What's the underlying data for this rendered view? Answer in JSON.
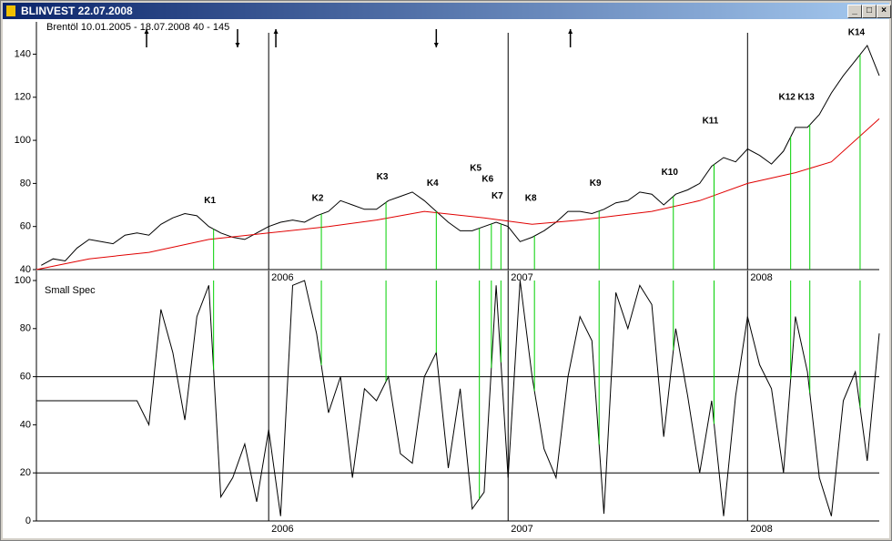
{
  "window": {
    "title": "BLINVEST  22.07.2008"
  },
  "chart_data": [
    {
      "type": "line",
      "title": "Brentöl  10.01.2005 - 18.07.2008  40 - 145",
      "xlim": [
        2005.03,
        2008.55
      ],
      "xticks": [
        2006,
        2007,
        2008
      ],
      "ylim": [
        40,
        155
      ],
      "yticks": [
        40,
        60,
        80,
        100,
        120,
        140
      ],
      "series": [
        {
          "color": "#000000",
          "x": [
            2005.05,
            2005.1,
            2005.15,
            2005.2,
            2005.25,
            2005.3,
            2005.35,
            2005.4,
            2005.45,
            2005.5,
            2005.55,
            2005.6,
            2005.65,
            2005.7,
            2005.75,
            2005.8,
            2005.85,
            2005.9,
            2005.95,
            2006,
            2006.05,
            2006.1,
            2006.15,
            2006.2,
            2006.25,
            2006.3,
            2006.35,
            2006.4,
            2006.45,
            2006.5,
            2006.55,
            2006.6,
            2006.65,
            2006.7,
            2006.75,
            2006.8,
            2006.85,
            2006.9,
            2006.95,
            2007,
            2007.05,
            2007.1,
            2007.15,
            2007.2,
            2007.25,
            2007.3,
            2007.35,
            2007.4,
            2007.45,
            2007.5,
            2007.55,
            2007.6,
            2007.65,
            2007.7,
            2007.75,
            2007.8,
            2007.85,
            2007.9,
            2007.95,
            2008,
            2008.05,
            2008.1,
            2008.15,
            2008.2,
            2008.25,
            2008.3,
            2008.35,
            2008.4,
            2008.45,
            2008.5,
            2008.55
          ],
          "values": [
            42,
            45,
            44,
            50,
            54,
            53,
            52,
            56,
            57,
            56,
            61,
            64,
            66,
            65,
            60,
            57,
            55,
            54,
            57,
            60,
            62,
            63,
            62,
            65,
            67,
            72,
            70,
            68,
            68,
            72,
            74,
            76,
            72,
            67,
            62,
            58,
            58,
            60,
            62,
            60,
            53,
            55,
            58,
            62,
            67,
            67,
            66,
            68,
            71,
            72,
            76,
            75,
            70,
            75,
            77,
            80,
            88,
            92,
            90,
            96,
            93,
            89,
            95,
            106,
            106,
            112,
            122,
            130,
            137,
            144,
            130
          ]
        },
        {
          "color": "#e00000",
          "x": [
            2005.03,
            2005.25,
            2005.5,
            2005.75,
            2006,
            2006.25,
            2006.45,
            2006.65,
            2006.9,
            2007.1,
            2007.3,
            2007.6,
            2007.8,
            2008,
            2008.2,
            2008.35,
            2008.55
          ],
          "values": [
            40,
            45,
            48,
            54,
            57,
            60,
            63,
            67,
            64,
            61,
            63,
            67,
            72,
            80,
            85,
            90,
            110
          ]
        }
      ],
      "annotations": [
        {
          "text": "K1",
          "x": 2005.77,
          "y": 72
        },
        {
          "text": "K2",
          "x": 2006.22,
          "y": 73
        },
        {
          "text": "K3",
          "x": 2006.49,
          "y": 83
        },
        {
          "text": "K4",
          "x": 2006.7,
          "y": 80
        },
        {
          "text": "K5",
          "x": 2006.88,
          "y": 87
        },
        {
          "text": "K6",
          "x": 2006.93,
          "y": 82
        },
        {
          "text": "K7",
          "x": 2006.97,
          "y": 74
        },
        {
          "text": "K8",
          "x": 2007.11,
          "y": 73
        },
        {
          "text": "K9",
          "x": 2007.38,
          "y": 80
        },
        {
          "text": "K10",
          "x": 2007.69,
          "y": 85
        },
        {
          "text": "K11",
          "x": 2007.86,
          "y": 109
        },
        {
          "text": "K12",
          "x": 2008.18,
          "y": 120
        },
        {
          "text": "K13",
          "x": 2008.26,
          "y": 120
        },
        {
          "text": "K14",
          "x": 2008.47,
          "y": 150
        }
      ],
      "annotation_color": "#00d000",
      "arrows": [
        {
          "x": 2005.49,
          "direction": "up"
        },
        {
          "x": 2005.87,
          "direction": "down"
        },
        {
          "x": 2006.03,
          "direction": "up"
        },
        {
          "x": 2006.7,
          "direction": "down"
        },
        {
          "x": 2007.26,
          "direction": "up"
        }
      ]
    },
    {
      "type": "line",
      "title": "Small Spec",
      "xlim": [
        2005.03,
        2008.55
      ],
      "xticks": [
        2006,
        2007,
        2008
      ],
      "ylim": [
        0,
        100
      ],
      "yticks": [
        0,
        20,
        40,
        60,
        80,
        100
      ],
      "reference_lines": [
        20,
        60
      ],
      "series": [
        {
          "color": "#000000",
          "x": [
            2005.03,
            2005.05,
            2005.1,
            2005.15,
            2005.2,
            2005.25,
            2005.3,
            2005.35,
            2005.4,
            2005.45,
            2005.5,
            2005.55,
            2005.6,
            2005.65,
            2005.7,
            2005.75,
            2005.8,
            2005.85,
            2005.9,
            2005.95,
            2006,
            2006.05,
            2006.1,
            2006.15,
            2006.2,
            2006.25,
            2006.3,
            2006.35,
            2006.4,
            2006.45,
            2006.5,
            2006.55,
            2006.6,
            2006.65,
            2006.7,
            2006.75,
            2006.8,
            2006.85,
            2006.9,
            2006.95,
            2007,
            2007.05,
            2007.1,
            2007.15,
            2007.2,
            2007.25,
            2007.3,
            2007.35,
            2007.4,
            2007.45,
            2007.5,
            2007.55,
            2007.6,
            2007.65,
            2007.7,
            2007.75,
            2007.8,
            2007.85,
            2007.9,
            2007.95,
            2008,
            2008.05,
            2008.1,
            2008.15,
            2008.2,
            2008.25,
            2008.3,
            2008.35,
            2008.4,
            2008.45,
            2008.5,
            2008.55
          ],
          "values": [
            50,
            50,
            50,
            50,
            50,
            50,
            50,
            50,
            50,
            50,
            40,
            88,
            70,
            42,
            85,
            98,
            10,
            18,
            32,
            8,
            38,
            2,
            98,
            100,
            78,
            45,
            60,
            18,
            55,
            50,
            60,
            28,
            24,
            60,
            70,
            22,
            55,
            5,
            12,
            98,
            18,
            100,
            60,
            30,
            18,
            60,
            85,
            75,
            3,
            95,
            80,
            98,
            90,
            35,
            80,
            52,
            20,
            50,
            2,
            52,
            85,
            65,
            55,
            20,
            85,
            62,
            18,
            2,
            50,
            62,
            25,
            78
          ]
        }
      ]
    }
  ]
}
